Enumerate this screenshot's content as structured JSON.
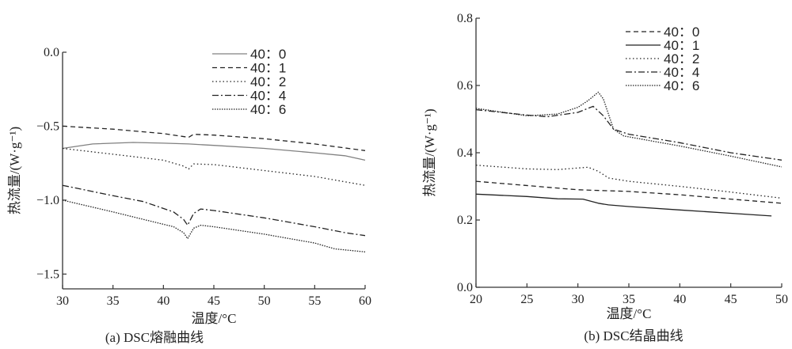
{
  "chart_data": [
    {
      "type": "line",
      "caption": "(a) DSC熔融曲线",
      "xlabel": "温度/°C",
      "ylabel": "热流量/(W·g⁻¹)",
      "xlim": [
        30,
        60
      ],
      "ylim": [
        -1.6,
        0.0
      ],
      "xticks": [
        "30",
        "35",
        "40",
        "45",
        "50",
        "55",
        "60"
      ],
      "yticks": [
        "0.0",
        "-0.5",
        "-1.0",
        "-1.5"
      ],
      "grid": false,
      "legend_position": "top-right",
      "series": [
        {
          "name": "40：0",
          "style": "solid",
          "color": "#808080",
          "x": [
            30,
            33,
            37,
            40,
            42.5,
            45,
            50,
            55,
            58,
            60
          ],
          "y": [
            -0.65,
            -0.62,
            -0.61,
            -0.615,
            -0.62,
            -0.63,
            -0.65,
            -0.68,
            -0.7,
            -0.73
          ]
        },
        {
          "name": "40：1",
          "style": "dashed",
          "color": "#222222",
          "x": [
            30,
            35,
            40,
            42.5,
            43,
            45,
            50,
            55,
            60
          ],
          "y": [
            -0.5,
            -0.52,
            -0.55,
            -0.575,
            -0.555,
            -0.56,
            -0.585,
            -0.62,
            -0.665
          ]
        },
        {
          "name": "40：2",
          "style": "dotted",
          "color": "#222222",
          "x": [
            30,
            35,
            40,
            42,
            42.5,
            43,
            45,
            50,
            55,
            60
          ],
          "y": [
            -0.65,
            -0.69,
            -0.73,
            -0.77,
            -0.79,
            -0.755,
            -0.76,
            -0.8,
            -0.84,
            -0.9
          ]
        },
        {
          "name": "40：4",
          "style": "dashdot",
          "color": "#222222",
          "x": [
            30,
            35,
            38,
            41,
            42,
            42.4,
            43,
            43.7,
            45,
            50,
            55,
            58,
            60
          ],
          "y": [
            -0.9,
            -0.97,
            -1.01,
            -1.08,
            -1.13,
            -1.17,
            -1.09,
            -1.06,
            -1.07,
            -1.12,
            -1.18,
            -1.22,
            -1.24
          ]
        },
        {
          "name": "40：6",
          "style": "densedot",
          "color": "#222222",
          "x": [
            30,
            35,
            38,
            41,
            42,
            42.4,
            43,
            43.7,
            45,
            50,
            55,
            57,
            60
          ],
          "y": [
            -1.0,
            -1.08,
            -1.13,
            -1.18,
            -1.22,
            -1.26,
            -1.19,
            -1.17,
            -1.18,
            -1.23,
            -1.29,
            -1.33,
            -1.35
          ]
        }
      ]
    },
    {
      "type": "line",
      "caption": "(b)  DSC结晶曲线",
      "xlabel": "温度/°C",
      "ylabel": "热流量/(W·g⁻¹)",
      "xlim": [
        20,
        50
      ],
      "ylim": [
        0.0,
        0.8
      ],
      "xticks": [
        "20",
        "25",
        "30",
        "35",
        "40",
        "45",
        "50"
      ],
      "yticks": [
        "0.0",
        "0.2",
        "0.4",
        "0.6",
        "0.8"
      ],
      "grid": false,
      "legend_position": "top-right",
      "series": [
        {
          "name": "40：0",
          "style": "dashed",
          "color": "#222222",
          "x": [
            20,
            30,
            35,
            40,
            45,
            50
          ],
          "y": [
            0.315,
            0.29,
            0.285,
            0.275,
            0.262,
            0.25
          ]
        },
        {
          "name": "40：1",
          "style": "solid",
          "color": "#222222",
          "x": [
            20,
            25,
            28,
            30.5,
            32,
            33,
            35,
            40,
            45,
            49
          ],
          "y": [
            0.277,
            0.27,
            0.263,
            0.262,
            0.25,
            0.245,
            0.24,
            0.23,
            0.22,
            0.212
          ]
        },
        {
          "name": "40：2",
          "style": "dotted",
          "color": "#222222",
          "x": [
            20,
            25,
            28,
            31,
            32,
            33,
            35,
            40,
            45,
            50
          ],
          "y": [
            0.363,
            0.352,
            0.35,
            0.357,
            0.345,
            0.325,
            0.315,
            0.3,
            0.283,
            0.265
          ]
        },
        {
          "name": "40：4",
          "style": "dashdot",
          "color": "#222222",
          "x": [
            20,
            25,
            27,
            30,
            31.5,
            32.5,
            33.5,
            35,
            40,
            45,
            50
          ],
          "y": [
            0.528,
            0.512,
            0.507,
            0.52,
            0.538,
            0.51,
            0.47,
            0.455,
            0.43,
            0.4,
            0.378
          ]
        },
        {
          "name": "40：6",
          "style": "densedot",
          "color": "#222222",
          "x": [
            20,
            25,
            28,
            30,
            31,
            32,
            32.5,
            33.5,
            34.5,
            40,
            45,
            50
          ],
          "y": [
            0.532,
            0.51,
            0.515,
            0.535,
            0.555,
            0.58,
            0.56,
            0.47,
            0.45,
            0.42,
            0.39,
            0.358
          ]
        }
      ]
    }
  ]
}
